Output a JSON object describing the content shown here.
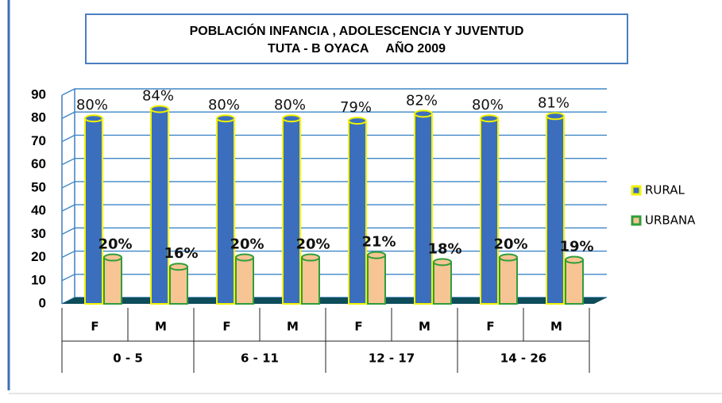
{
  "chart_data": {
    "type": "bar",
    "title": "POBLACIÓN INFANCIA , ADOLESCENCIA Y JUVENTUD",
    "subtitle": "TUTA - B OYACA     AÑO 2009",
    "categories": [
      "F",
      "M",
      "F",
      "M",
      "F",
      "M",
      "F",
      "M"
    ],
    "groups": [
      "0 - 5",
      "6 - 11",
      "12 - 17",
      "14 - 26"
    ],
    "series": [
      {
        "name": "RURAL",
        "color": "#3b6fbe",
        "edge_color": "#f2f200",
        "values": [
          80,
          84,
          80,
          80,
          79,
          82,
          80,
          81
        ],
        "value_labels": [
          "80%",
          "84%",
          "80%",
          "80%",
          "79%",
          "82%",
          "80%",
          "81%"
        ]
      },
      {
        "name": "URBANA",
        "color": "#f7c493",
        "edge_color": "#2f9e3a",
        "values": [
          20,
          16,
          20,
          20,
          21,
          18,
          20,
          19
        ],
        "value_labels": [
          "20%",
          "16%",
          "20%",
          "20%",
          "21%",
          "18%",
          "20%",
          "19%"
        ]
      }
    ],
    "ylim": [
      0,
      90
    ],
    "yticks": [
      0,
      10,
      20,
      30,
      40,
      50,
      60,
      70,
      80,
      90
    ],
    "grid": true,
    "legend": "right"
  }
}
